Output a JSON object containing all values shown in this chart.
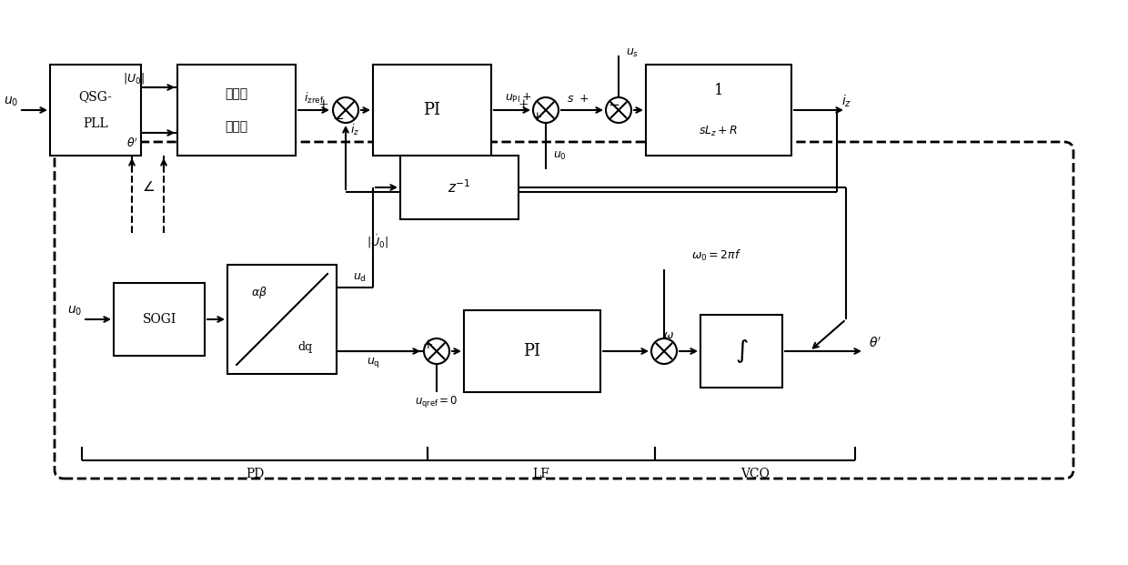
{
  "bg_color": "#ffffff",
  "lc": "#000000",
  "figsize": [
    12.4,
    6.21
  ],
  "dpi": 100,
  "xlim": [
    0,
    124
  ],
  "ylim": [
    0,
    62.1
  ]
}
